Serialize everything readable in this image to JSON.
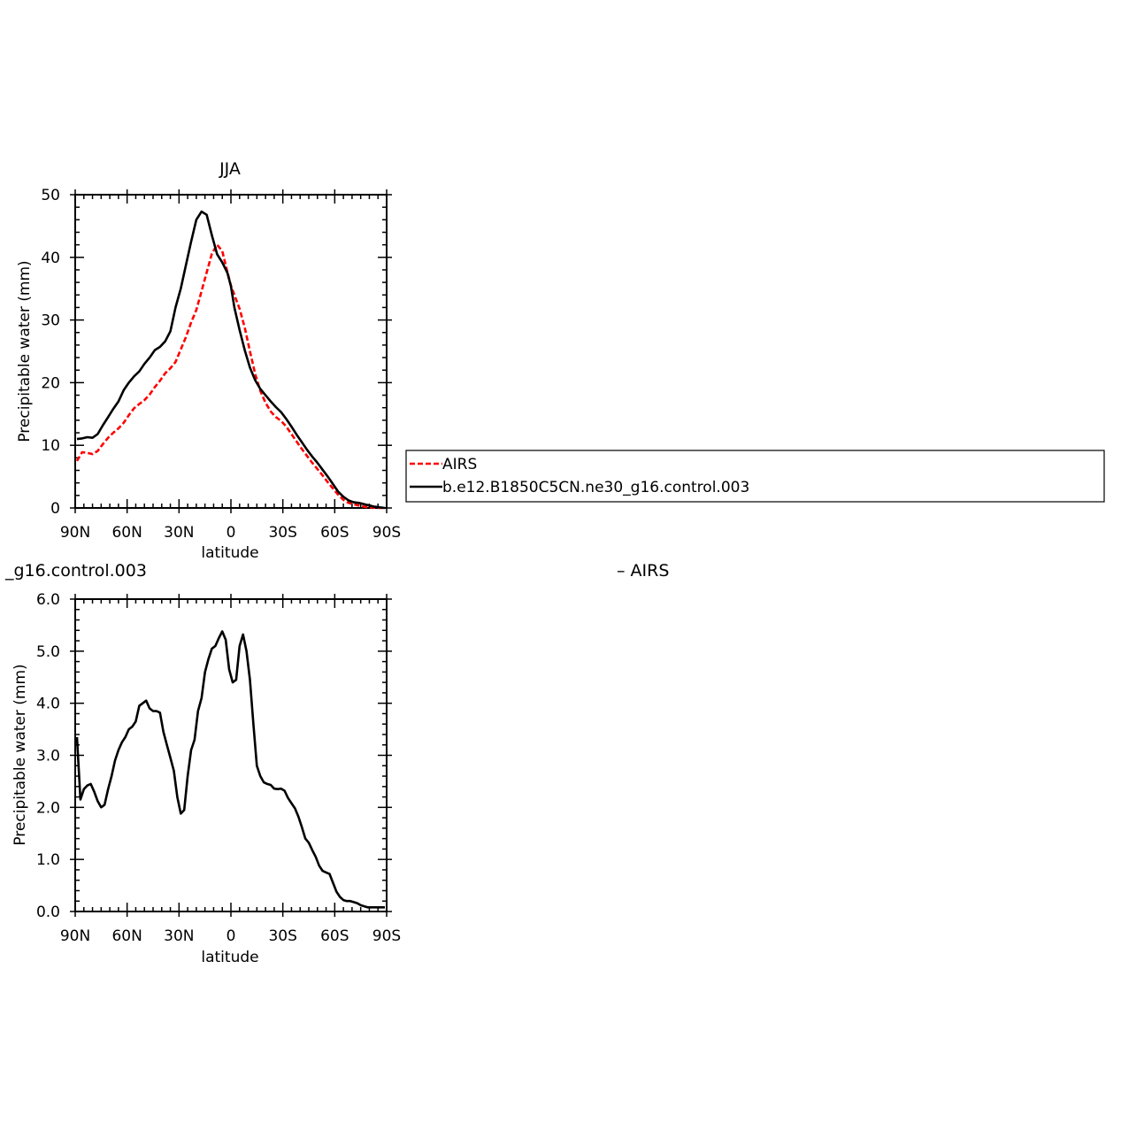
{
  "chart_data": [
    {
      "type": "line",
      "title": "JJA",
      "xlabel": "latitude",
      "ylabel": "Precipitable water (mm)",
      "x_ticks": [
        "90N",
        "60N",
        "30N",
        "0",
        "30S",
        "60S",
        "90S"
      ],
      "x_tick_values": [
        90,
        60,
        30,
        0,
        -30,
        -60,
        -90
      ],
      "xlim": [
        90,
        -90
      ],
      "y_ticks": [
        "0",
        "10",
        "20",
        "30",
        "40",
        "50"
      ],
      "ylim": [
        0,
        50
      ],
      "grid": false,
      "legend_position": "right",
      "series": [
        {
          "name": "AIRS",
          "color": "#ff0000",
          "style": "dashed",
          "x": [
            89,
            86,
            83,
            80,
            77,
            74,
            71,
            68,
            65,
            62,
            59,
            56,
            53,
            50,
            47,
            44,
            41,
            38,
            35,
            32,
            29,
            26,
            23,
            20,
            17,
            14,
            11,
            8,
            5,
            2,
            0,
            -2,
            -5,
            -8,
            -11,
            -14,
            -17,
            -20,
            -23,
            -26,
            -29,
            -32,
            -35,
            -38,
            -41,
            -44,
            -47,
            -50,
            -53,
            -56,
            -59,
            -62,
            -65,
            -68,
            -71,
            -74,
            -77,
            -80,
            -83,
            -86,
            -89
          ],
          "values": [
            7.5,
            8.9,
            8.8,
            8.6,
            9.1,
            10.2,
            11.2,
            12.0,
            12.7,
            13.6,
            14.8,
            15.9,
            16.6,
            17.2,
            18.1,
            19.3,
            20.3,
            21.5,
            22.3,
            23.3,
            25.3,
            27.3,
            29.6,
            31.6,
            34.6,
            37.6,
            40.6,
            42.0,
            41.0,
            37.6,
            35.5,
            34.0,
            31.8,
            28.8,
            25.0,
            21.4,
            18.7,
            16.8,
            15.4,
            14.5,
            13.9,
            13.0,
            11.8,
            10.6,
            9.4,
            8.3,
            7.2,
            6.2,
            5.2,
            4.1,
            3.1,
            2.1,
            1.3,
            0.8,
            0.6,
            0.4,
            0.2,
            0.1,
            0.05,
            0.0,
            0.0
          ]
        },
        {
          "name": "b.e12.B1850C5CN.ne30_g16.control.003",
          "color": "#000000",
          "style": "solid",
          "x": [
            89,
            86,
            83,
            80,
            77,
            74,
            71,
            68,
            65,
            62,
            59,
            56,
            53,
            50,
            47,
            44,
            41,
            38,
            35,
            32,
            29,
            26,
            23,
            20,
            17,
            14,
            11,
            8,
            5,
            2,
            0,
            -2,
            -5,
            -8,
            -11,
            -14,
            -17,
            -20,
            -23,
            -26,
            -29,
            -32,
            -35,
            -38,
            -41,
            -44,
            -47,
            -50,
            -53,
            -56,
            -59,
            -62,
            -65,
            -68,
            -71,
            -74,
            -77,
            -80,
            -83,
            -86,
            -89
          ],
          "values": [
            11.0,
            11.1,
            11.3,
            11.2,
            11.8,
            13.2,
            14.5,
            15.8,
            17.0,
            18.8,
            20.0,
            21.0,
            21.8,
            23.0,
            24.0,
            25.2,
            25.7,
            26.6,
            28.2,
            32.0,
            35.0,
            38.8,
            42.5,
            46.0,
            47.3,
            46.8,
            43.5,
            40.5,
            39.2,
            37.5,
            35.4,
            32.0,
            28.4,
            25.2,
            22.4,
            20.4,
            19.0,
            18.0,
            17.0,
            16.1,
            15.3,
            14.2,
            13.0,
            11.7,
            10.5,
            9.3,
            8.2,
            7.2,
            6.1,
            5.0,
            3.8,
            2.6,
            1.8,
            1.2,
            0.9,
            0.8,
            0.6,
            0.4,
            0.2,
            0.1,
            0.0
          ]
        }
      ]
    },
    {
      "type": "line",
      "title": "_g16.control.003",
      "title_right": "– AIRS",
      "xlabel": "latitude",
      "ylabel": "Precipitable water (mm)",
      "x_ticks": [
        "90N",
        "60N",
        "30N",
        "0",
        "30S",
        "60S",
        "90S"
      ],
      "x_tick_values": [
        90,
        60,
        30,
        0,
        -30,
        -60,
        -90
      ],
      "xlim": [
        90,
        -90
      ],
      "y_ticks": [
        "0.0",
        "1.0",
        "2.0",
        "3.0",
        "4.0",
        "5.0",
        "6.0"
      ],
      "ylim": [
        0,
        6
      ],
      "grid": false,
      "series": [
        {
          "color": "#000000",
          "style": "solid",
          "x": [
            89,
            87,
            85,
            83,
            81,
            79,
            77,
            75,
            73,
            71,
            69,
            67,
            65,
            63,
            61,
            59,
            57,
            55,
            53,
            51,
            49,
            47,
            45,
            43,
            41,
            39,
            37,
            35,
            33,
            31,
            29,
            27,
            25,
            23,
            21,
            19,
            17,
            15,
            13,
            11,
            9,
            7,
            5,
            3,
            1,
            -1,
            -3,
            -5,
            -7,
            -9,
            -11,
            -13,
            -15,
            -17,
            -19,
            -21,
            -23,
            -25,
            -27,
            -29,
            -31,
            -33,
            -35,
            -37,
            -39,
            -41,
            -43,
            -45,
            -47,
            -49,
            -51,
            -53,
            -55,
            -57,
            -59,
            -61,
            -63,
            -65,
            -67,
            -69,
            -71,
            -73,
            -75,
            -77,
            -79,
            -81,
            -83,
            -85,
            -87,
            -89
          ],
          "values": [
            3.35,
            2.15,
            2.35,
            2.42,
            2.45,
            2.3,
            2.12,
            2.0,
            2.05,
            2.35,
            2.6,
            2.9,
            3.1,
            3.25,
            3.35,
            3.5,
            3.55,
            3.65,
            3.95,
            4.0,
            4.05,
            3.9,
            3.85,
            3.85,
            3.82,
            3.45,
            3.2,
            2.95,
            2.7,
            2.2,
            1.88,
            1.95,
            2.6,
            3.1,
            3.3,
            3.85,
            4.1,
            4.6,
            4.85,
            5.05,
            5.1,
            5.25,
            5.38,
            5.22,
            4.65,
            4.4,
            4.45,
            5.1,
            5.32,
            5.0,
            4.45,
            3.6,
            2.8,
            2.6,
            2.48,
            2.45,
            2.43,
            2.36,
            2.35,
            2.36,
            2.32,
            2.18,
            2.08,
            1.98,
            1.82,
            1.62,
            1.4,
            1.32,
            1.18,
            1.05,
            0.88,
            0.78,
            0.75,
            0.72,
            0.55,
            0.38,
            0.28,
            0.22,
            0.2,
            0.2,
            0.18,
            0.16,
            0.12,
            0.1,
            0.08,
            0.08,
            0.08,
            0.08,
            0.08,
            0.08
          ]
        }
      ]
    }
  ]
}
